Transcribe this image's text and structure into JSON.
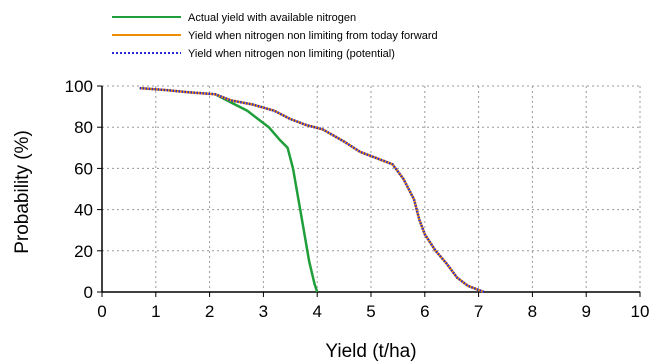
{
  "chart_data": {
    "type": "line",
    "title": "",
    "xlabel": "Yield (t/ha)",
    "ylabel": "Probability (%)",
    "xlim": [
      0,
      10
    ],
    "ylim": [
      0,
      100
    ],
    "x_ticks": [
      "0",
      "1",
      "2",
      "3",
      "4",
      "5",
      "6",
      "7",
      "8",
      "9",
      "10"
    ],
    "y_ticks": [
      "0",
      "20",
      "40",
      "60",
      "80",
      "100"
    ],
    "grid": true,
    "legend_position": "top",
    "series": [
      {
        "name": "Actual yield with available nitrogen",
        "color": "#1f9e3a",
        "style": "solid",
        "points": [
          [
            2.1,
            96
          ],
          [
            2.4,
            92
          ],
          [
            2.7,
            88
          ],
          [
            2.9,
            84
          ],
          [
            3.1,
            80
          ],
          [
            3.3,
            74
          ],
          [
            3.45,
            70
          ],
          [
            3.55,
            60
          ],
          [
            3.65,
            45
          ],
          [
            3.75,
            30
          ],
          [
            3.85,
            15
          ],
          [
            3.95,
            4
          ],
          [
            4.0,
            0
          ]
        ]
      },
      {
        "name": "Yield when nitrogen non limiting from today forward",
        "color": "#f08c00",
        "style": "solid",
        "points": [
          [
            0.7,
            99
          ],
          [
            1.2,
            98
          ],
          [
            1.6,
            97
          ],
          [
            2.1,
            96
          ],
          [
            2.4,
            93
          ],
          [
            2.8,
            91
          ],
          [
            3.2,
            88
          ],
          [
            3.5,
            84
          ],
          [
            3.8,
            81
          ],
          [
            4.1,
            79
          ],
          [
            4.5,
            73
          ],
          [
            4.8,
            68
          ],
          [
            5.1,
            65
          ],
          [
            5.4,
            62
          ],
          [
            5.6,
            55
          ],
          [
            5.8,
            45
          ],
          [
            5.9,
            35
          ],
          [
            6.0,
            28
          ],
          [
            6.2,
            20
          ],
          [
            6.4,
            14
          ],
          [
            6.6,
            7
          ],
          [
            6.8,
            3
          ],
          [
            7.0,
            1
          ],
          [
            7.1,
            0
          ]
        ]
      },
      {
        "name": "Yield when nitrogen non limiting (potential)",
        "color": "#2a2ad8",
        "style": "dotted",
        "points": [
          [
            0.7,
            99
          ],
          [
            1.2,
            98
          ],
          [
            1.6,
            97
          ],
          [
            2.1,
            96
          ],
          [
            2.4,
            93
          ],
          [
            2.8,
            91
          ],
          [
            3.2,
            88
          ],
          [
            3.5,
            84
          ],
          [
            3.8,
            81
          ],
          [
            4.1,
            79
          ],
          [
            4.5,
            73
          ],
          [
            4.8,
            68
          ],
          [
            5.1,
            65
          ],
          [
            5.4,
            62
          ],
          [
            5.6,
            55
          ],
          [
            5.8,
            45
          ],
          [
            5.9,
            35
          ],
          [
            6.0,
            28
          ],
          [
            6.2,
            20
          ],
          [
            6.4,
            14
          ],
          [
            6.6,
            7
          ],
          [
            6.8,
            3
          ],
          [
            7.0,
            1
          ],
          [
            7.1,
            0
          ]
        ]
      }
    ]
  }
}
